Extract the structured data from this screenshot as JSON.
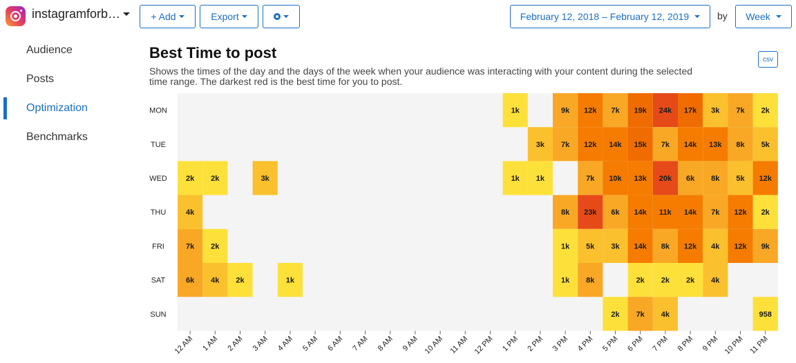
{
  "topbar": {
    "account_name": "instagramforb…",
    "add_label": "+ Add",
    "export_label": "Export",
    "date_range": "February 12, 2018 – February 12, 2019",
    "by_label": "by",
    "interval_label": "Week"
  },
  "sidebar": {
    "items": [
      {
        "label": "Audience",
        "active": false
      },
      {
        "label": "Posts",
        "active": false
      },
      {
        "label": "Optimization",
        "active": true
      },
      {
        "label": "Benchmarks",
        "active": false
      }
    ]
  },
  "main": {
    "title": "Best Time to post",
    "description": "Shows the times of the day and the days of the week when your audience was interacting with your content during the selected time range. The darkest red is the best time for you to post.",
    "csv_label": "csv"
  },
  "colors": {
    "accent": "#1a6fc4",
    "empty_cell": "#f4f4f4"
  },
  "chart_data": {
    "type": "heatmap",
    "rows": [
      "MON",
      "TUE",
      "WED",
      "THU",
      "FRI",
      "SAT",
      "SUN"
    ],
    "columns": [
      "12 AM",
      "1 AM",
      "2 AM",
      "3 AM",
      "4 AM",
      "5 AM",
      "6 AM",
      "7 AM",
      "8 AM",
      "9 AM",
      "10 AM",
      "11 AM",
      "12 PM",
      "1 PM",
      "2 PM",
      "3 PM",
      "4 PM",
      "5 PM",
      "6 PM",
      "7 PM",
      "8 PM",
      "9 PM",
      "10 PM",
      "11 PM"
    ],
    "labels": [
      [
        null,
        null,
        null,
        null,
        null,
        null,
        null,
        null,
        null,
        null,
        null,
        null,
        null,
        "1k",
        null,
        "9k",
        "12k",
        "7k",
        "19k",
        "24k",
        "17k",
        "3k",
        "7k",
        "2k"
      ],
      [
        null,
        null,
        null,
        null,
        null,
        null,
        null,
        null,
        null,
        null,
        null,
        null,
        null,
        null,
        "3k",
        "7k",
        "12k",
        "14k",
        "15k",
        "7k",
        "14k",
        "13k",
        "8k",
        "5k"
      ],
      [
        "2k",
        "2k",
        null,
        "3k",
        null,
        null,
        null,
        null,
        null,
        null,
        null,
        null,
        null,
        "1k",
        "1k",
        null,
        "7k",
        "10k",
        "13k",
        "20k",
        "6k",
        "8k",
        "5k",
        "12k"
      ],
      [
        "4k",
        null,
        null,
        null,
        null,
        null,
        null,
        null,
        null,
        null,
        null,
        null,
        null,
        null,
        null,
        "8k",
        "23k",
        "6k",
        "14k",
        "11k",
        "14k",
        "7k",
        "12k",
        "2k"
      ],
      [
        "7k",
        "2k",
        null,
        null,
        null,
        null,
        null,
        null,
        null,
        null,
        null,
        null,
        null,
        null,
        null,
        "1k",
        "5k",
        "3k",
        "14k",
        "8k",
        "12k",
        "4k",
        "12k",
        "9k"
      ],
      [
        "6k",
        "4k",
        "2k",
        null,
        "1k",
        null,
        null,
        null,
        null,
        null,
        null,
        null,
        null,
        null,
        null,
        "1k",
        "8k",
        null,
        "2k",
        "2k",
        "2k",
        "4k",
        null,
        null
      ],
      [
        null,
        null,
        null,
        null,
        null,
        null,
        null,
        null,
        null,
        null,
        null,
        null,
        null,
        null,
        null,
        null,
        null,
        "2k",
        "7k",
        "4k",
        null,
        null,
        null,
        "958"
      ]
    ],
    "color_scale": [
      "#fde13a",
      "#fbc02d",
      "#f9a825",
      "#f57c00",
      "#ef6c00",
      "#e64a19"
    ]
  }
}
